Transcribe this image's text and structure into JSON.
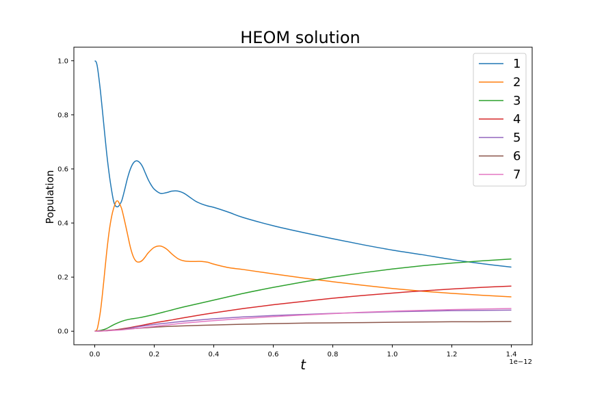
{
  "chart_data": {
    "type": "line",
    "title": "HEOM solution",
    "xlabel": "t",
    "ylabel": "Population",
    "x_offset_label": "1e−12",
    "x_tick_unit": "1e-12",
    "xlim": [
      -0.07,
      1.47
    ],
    "ylim": [
      -0.05,
      1.05
    ],
    "xticks": [
      0.0,
      0.2,
      0.4,
      0.6,
      0.8,
      1.0,
      1.2,
      1.4
    ],
    "xtick_labels": [
      "0.0",
      "0.2",
      "0.4",
      "0.6",
      "0.8",
      "1.0",
      "1.2",
      "1.4"
    ],
    "yticks": [
      0.0,
      0.2,
      0.4,
      0.6,
      0.8,
      1.0
    ],
    "ytick_labels": [
      "0.0",
      "0.2",
      "0.4",
      "0.6",
      "0.8",
      "1.0"
    ],
    "grid": false,
    "legend_position": "top-right",
    "series": [
      {
        "name": "1",
        "color": "#1f77b4",
        "x": [
          0.0,
          0.005,
          0.01,
          0.02,
          0.03,
          0.04,
          0.05,
          0.06,
          0.065,
          0.07,
          0.075,
          0.08,
          0.09,
          0.1,
          0.11,
          0.12,
          0.13,
          0.14,
          0.15,
          0.16,
          0.17,
          0.18,
          0.19,
          0.2,
          0.22,
          0.24,
          0.26,
          0.28,
          0.3,
          0.32,
          0.34,
          0.36,
          0.38,
          0.4,
          0.45,
          0.5,
          0.6,
          0.7,
          0.8,
          0.9,
          1.0,
          1.1,
          1.2,
          1.3,
          1.4
        ],
        "y": [
          1.0,
          0.995,
          0.97,
          0.88,
          0.77,
          0.66,
          0.57,
          0.5,
          0.475,
          0.463,
          0.46,
          0.462,
          0.48,
          0.52,
          0.565,
          0.6,
          0.622,
          0.63,
          0.625,
          0.61,
          0.585,
          0.56,
          0.54,
          0.525,
          0.51,
          0.512,
          0.518,
          0.518,
          0.51,
          0.495,
          0.48,
          0.47,
          0.463,
          0.458,
          0.44,
          0.42,
          0.39,
          0.365,
          0.342,
          0.32,
          0.3,
          0.283,
          0.265,
          0.25,
          0.237
        ]
      },
      {
        "name": "2",
        "color": "#ff7f0e",
        "x": [
          0.0,
          0.005,
          0.01,
          0.02,
          0.03,
          0.04,
          0.05,
          0.06,
          0.07,
          0.075,
          0.08,
          0.09,
          0.1,
          0.11,
          0.12,
          0.13,
          0.14,
          0.15,
          0.16,
          0.17,
          0.18,
          0.2,
          0.22,
          0.24,
          0.26,
          0.28,
          0.3,
          0.32,
          0.34,
          0.36,
          0.38,
          0.4,
          0.45,
          0.5,
          0.6,
          0.7,
          0.8,
          0.9,
          1.0,
          1.1,
          1.2,
          1.3,
          1.4
        ],
        "y": [
          0.0,
          0.003,
          0.015,
          0.08,
          0.18,
          0.29,
          0.38,
          0.44,
          0.475,
          0.482,
          0.478,
          0.455,
          0.41,
          0.36,
          0.31,
          0.275,
          0.258,
          0.256,
          0.262,
          0.275,
          0.29,
          0.31,
          0.315,
          0.305,
          0.285,
          0.268,
          0.26,
          0.258,
          0.258,
          0.258,
          0.255,
          0.248,
          0.235,
          0.228,
          0.212,
          0.197,
          0.183,
          0.17,
          0.158,
          0.148,
          0.14,
          0.133,
          0.127
        ]
      },
      {
        "name": "3",
        "color": "#2ca02c",
        "x": [
          0.0,
          0.02,
          0.04,
          0.06,
          0.08,
          0.1,
          0.12,
          0.15,
          0.2,
          0.25,
          0.3,
          0.4,
          0.5,
          0.6,
          0.7,
          0.8,
          0.9,
          1.0,
          1.1,
          1.2,
          1.3,
          1.4
        ],
        "y": [
          0.0,
          0.003,
          0.01,
          0.022,
          0.032,
          0.04,
          0.045,
          0.05,
          0.062,
          0.076,
          0.09,
          0.115,
          0.14,
          0.162,
          0.182,
          0.2,
          0.216,
          0.23,
          0.242,
          0.252,
          0.26,
          0.267
        ]
      },
      {
        "name": "4",
        "color": "#d62728",
        "x": [
          0.0,
          0.04,
          0.08,
          0.12,
          0.16,
          0.2,
          0.25,
          0.3,
          0.4,
          0.5,
          0.6,
          0.7,
          0.8,
          0.9,
          1.0,
          1.1,
          1.2,
          1.3,
          1.4
        ],
        "y": [
          0.0,
          0.002,
          0.007,
          0.014,
          0.022,
          0.031,
          0.04,
          0.05,
          0.068,
          0.084,
          0.098,
          0.11,
          0.122,
          0.132,
          0.141,
          0.149,
          0.156,
          0.162,
          0.167
        ]
      },
      {
        "name": "5",
        "color": "#9467bd",
        "x": [
          0.0,
          0.04,
          0.08,
          0.12,
          0.16,
          0.2,
          0.25,
          0.3,
          0.4,
          0.5,
          0.6,
          0.7,
          0.8,
          0.9,
          1.0,
          1.1,
          1.2,
          1.3,
          1.4
        ],
        "y": [
          0.0,
          0.002,
          0.006,
          0.012,
          0.019,
          0.025,
          0.031,
          0.037,
          0.046,
          0.053,
          0.058,
          0.062,
          0.066,
          0.069,
          0.072,
          0.074,
          0.076,
          0.077,
          0.078
        ]
      },
      {
        "name": "6",
        "color": "#8c564b",
        "x": [
          0.0,
          0.04,
          0.08,
          0.12,
          0.16,
          0.2,
          0.25,
          0.3,
          0.4,
          0.5,
          0.6,
          0.7,
          0.8,
          0.9,
          1.0,
          1.1,
          1.2,
          1.3,
          1.4
        ],
        "y": [
          0.0,
          0.003,
          0.006,
          0.009,
          0.012,
          0.015,
          0.018,
          0.02,
          0.023,
          0.026,
          0.028,
          0.03,
          0.031,
          0.032,
          0.033,
          0.034,
          0.035,
          0.035,
          0.036
        ]
      },
      {
        "name": "7",
        "color": "#e377c2",
        "x": [
          0.0,
          0.04,
          0.08,
          0.12,
          0.16,
          0.2,
          0.25,
          0.3,
          0.4,
          0.5,
          0.6,
          0.7,
          0.8,
          0.9,
          1.0,
          1.1,
          1.2,
          1.3,
          1.4
        ],
        "y": [
          0.0,
          0.002,
          0.004,
          0.008,
          0.013,
          0.018,
          0.024,
          0.03,
          0.039,
          0.047,
          0.054,
          0.06,
          0.065,
          0.07,
          0.074,
          0.077,
          0.08,
          0.082,
          0.084
        ]
      }
    ]
  }
}
